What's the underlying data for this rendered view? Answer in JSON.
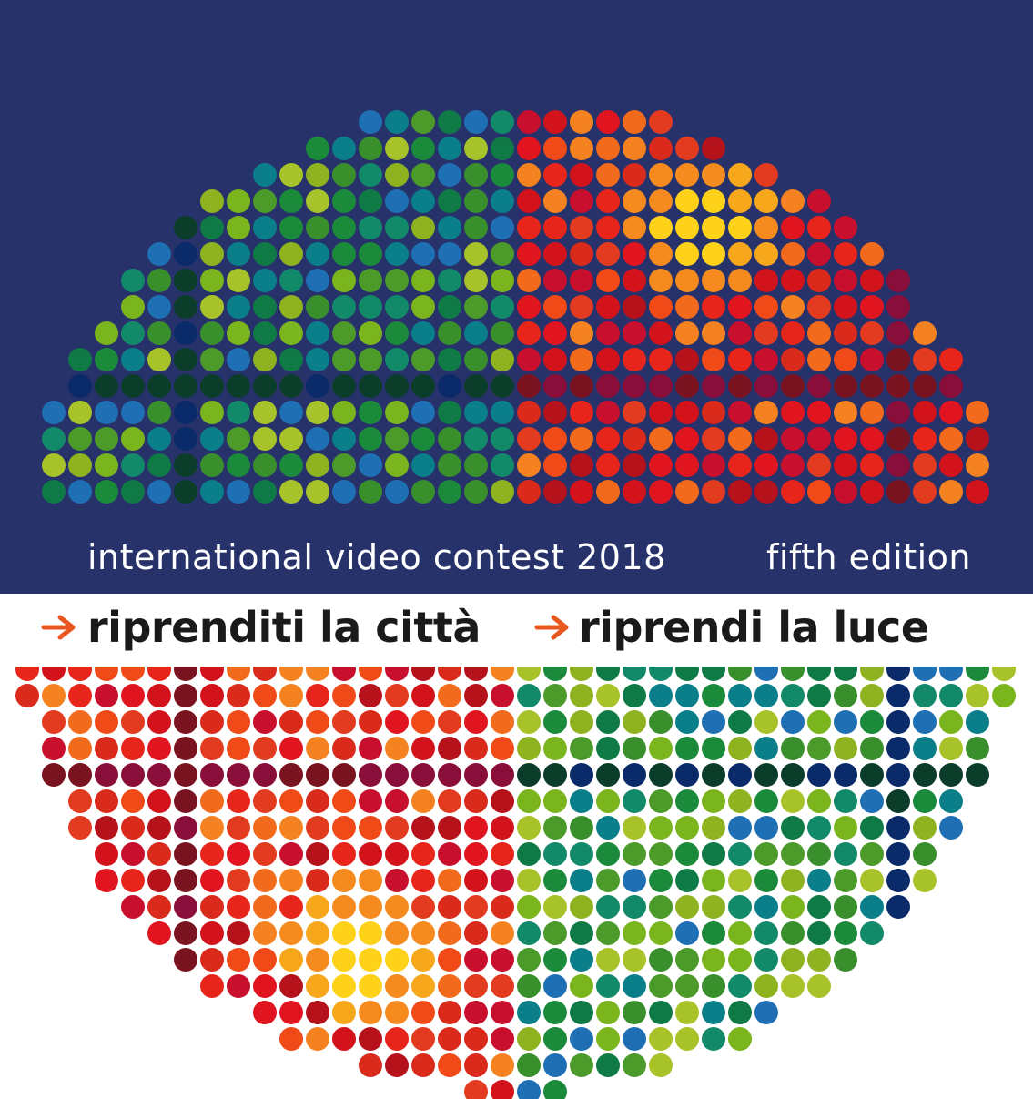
{
  "header": {
    "contest_line": "international video contest 2018",
    "edition": "fifth edition"
  },
  "slogans": [
    {
      "text": "riprenditi la città",
      "icon": "arrow-right-icon"
    },
    {
      "text": "riprendi la luce",
      "icon": "arrow-right-icon"
    }
  ],
  "colors": {
    "band": "#27326b",
    "arrow": "#e8571f",
    "slogan_text": "#1a1a1a",
    "band_text": "#ffffff"
  }
}
